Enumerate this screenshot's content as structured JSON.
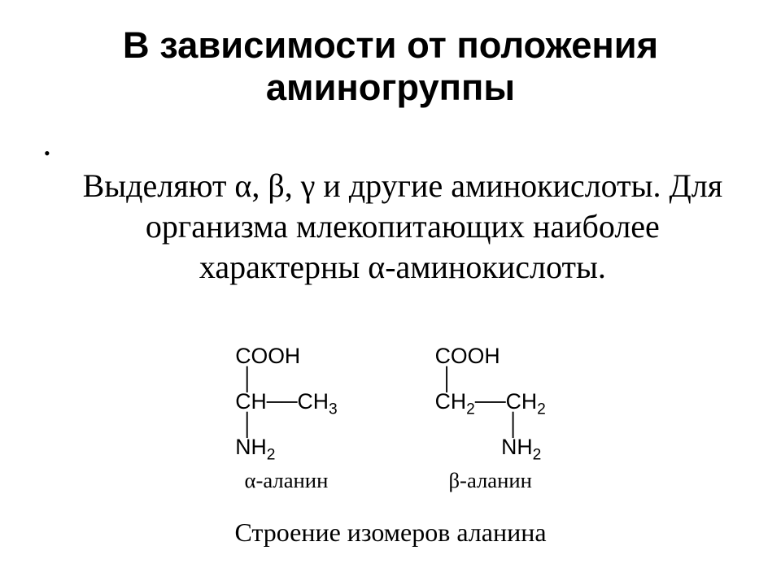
{
  "title": {
    "line1": "В зависимости от положения",
    "line2": "аминогруппы",
    "fontsize_pt": 34,
    "color": "#000000"
  },
  "body": {
    "text": "Выделяют α, β, γ и другие аминокислоты. Для организма млекопитающих наиболее характерны α-аминокислоты.",
    "fontsize_pt": 30,
    "color": "#000000",
    "bullet_char": "•"
  },
  "figure": {
    "type": "chemical-structure-pair",
    "formula_fontsize_pt": 20,
    "label_fontsize_pt": 20,
    "caption_fontsize_pt": 24,
    "colors": {
      "text": "#000000",
      "background": "#ffffff"
    },
    "left": {
      "label": "α-аланин",
      "lines": [
        "COOH",
        "|",
        "CH──CH₃",
        "|",
        "NH₂"
      ]
    },
    "right": {
      "label": "β-аланин",
      "lines": [
        "COOH",
        "|",
        "CH₂──CH₂",
        "        |",
        "        NH₂"
      ]
    },
    "caption": "Строение изомеров аланина"
  }
}
